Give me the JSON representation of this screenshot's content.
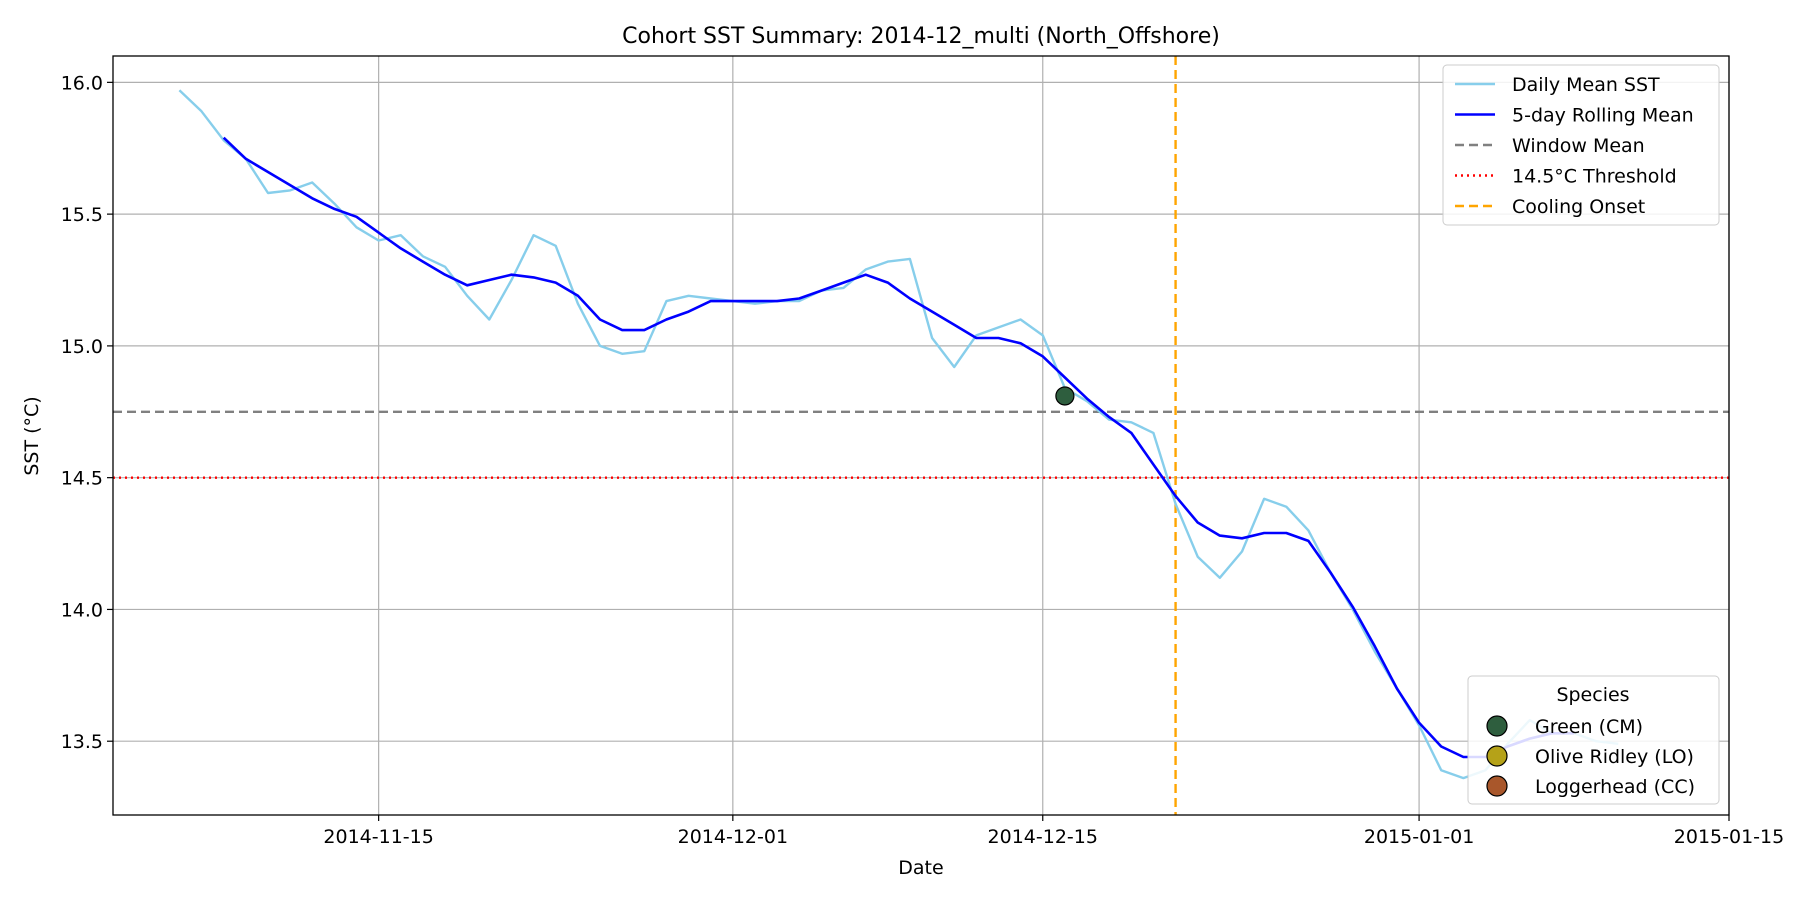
{
  "chart_data": {
    "type": "line",
    "title": "Cohort SST Summary: 2014-12_multi (North_Offshore)",
    "xlabel": "Date",
    "ylabel": "SST (°C)",
    "xlim": [
      "2014-11-03",
      "2015-01-15"
    ],
    "ylim": [
      13.22,
      16.1
    ],
    "x_ticks": [
      "2014-11-15",
      "2014-12-01",
      "2014-12-15",
      "2015-01-01",
      "2015-01-15"
    ],
    "y_ticks": [
      13.5,
      14.0,
      14.5,
      15.0,
      15.5,
      16.0
    ],
    "y_tick_labels": [
      "13.5",
      "14.0",
      "14.5",
      "15.0",
      "15.5",
      "16.0"
    ],
    "grid": true,
    "series": [
      {
        "name": "Daily Mean SST",
        "color": "#87ceeb",
        "style": "solid",
        "x": [
          "2014-11-06",
          "2014-11-07",
          "2014-11-08",
          "2014-11-09",
          "2014-11-10",
          "2014-11-11",
          "2014-11-12",
          "2014-11-13",
          "2014-11-14",
          "2014-11-15",
          "2014-11-16",
          "2014-11-17",
          "2014-11-18",
          "2014-11-19",
          "2014-11-20",
          "2014-11-21",
          "2014-11-22",
          "2014-11-23",
          "2014-11-24",
          "2014-11-25",
          "2014-11-26",
          "2014-11-27",
          "2014-11-28",
          "2014-11-29",
          "2014-11-30",
          "2014-12-01",
          "2014-12-02",
          "2014-12-03",
          "2014-12-04",
          "2014-12-05",
          "2014-12-06",
          "2014-12-07",
          "2014-12-08",
          "2014-12-09",
          "2014-12-10",
          "2014-12-11",
          "2014-12-12",
          "2014-12-13",
          "2014-12-14",
          "2014-12-15",
          "2014-12-16",
          "2014-12-17",
          "2014-12-18",
          "2014-12-19",
          "2014-12-20",
          "2014-12-21",
          "2014-12-22",
          "2014-12-23",
          "2014-12-24",
          "2014-12-25",
          "2014-12-26",
          "2014-12-27",
          "2014-12-28",
          "2014-12-29",
          "2014-12-30",
          "2014-12-31",
          "2015-01-01",
          "2015-01-02",
          "2015-01-03",
          "2015-01-04",
          "2015-01-05",
          "2015-01-06",
          "2015-01-07",
          "2015-01-08",
          "2015-01-09",
          "2015-01-10"
        ],
        "values": [
          15.97,
          15.89,
          15.78,
          15.71,
          15.58,
          15.59,
          15.62,
          15.54,
          15.45,
          15.4,
          15.42,
          15.34,
          15.3,
          15.19,
          15.1,
          15.25,
          15.42,
          15.38,
          15.16,
          15.0,
          14.97,
          14.98,
          15.17,
          15.19,
          15.18,
          15.17,
          15.16,
          15.17,
          15.17,
          15.21,
          15.22,
          15.29,
          15.32,
          15.33,
          15.03,
          14.92,
          15.04,
          15.07,
          15.1,
          15.04,
          14.84,
          14.79,
          14.72,
          14.71,
          14.67,
          14.4,
          14.2,
          14.12,
          14.22,
          14.42,
          14.39,
          14.3,
          14.14,
          14.0,
          13.84,
          13.7,
          13.56,
          13.39,
          13.36,
          13.39,
          13.49,
          13.58,
          13.53,
          13.53,
          13.5,
          13.49
        ]
      },
      {
        "name": "5-day Rolling Mean",
        "color": "#0000ff",
        "style": "solid",
        "x": [
          "2014-11-08",
          "2014-11-09",
          "2014-11-10",
          "2014-11-11",
          "2014-11-12",
          "2014-11-13",
          "2014-11-14",
          "2014-11-15",
          "2014-11-16",
          "2014-11-17",
          "2014-11-18",
          "2014-11-19",
          "2014-11-20",
          "2014-11-21",
          "2014-11-22",
          "2014-11-23",
          "2014-11-24",
          "2014-11-25",
          "2014-11-26",
          "2014-11-27",
          "2014-11-28",
          "2014-11-29",
          "2014-11-30",
          "2014-12-01",
          "2014-12-02",
          "2014-12-03",
          "2014-12-04",
          "2014-12-05",
          "2014-12-06",
          "2014-12-07",
          "2014-12-08",
          "2014-12-09",
          "2014-12-10",
          "2014-12-11",
          "2014-12-12",
          "2014-12-13",
          "2014-12-14",
          "2014-12-15",
          "2014-12-16",
          "2014-12-17",
          "2014-12-18",
          "2014-12-19",
          "2014-12-20",
          "2014-12-21",
          "2014-12-22",
          "2014-12-23",
          "2014-12-24",
          "2014-12-25",
          "2014-12-26",
          "2014-12-27",
          "2014-12-28",
          "2014-12-29",
          "2014-12-30",
          "2014-12-31",
          "2015-01-01",
          "2015-01-02",
          "2015-01-03",
          "2015-01-04",
          "2015-01-05",
          "2015-01-06",
          "2015-01-07",
          "2015-01-08"
        ],
        "values": [
          15.79,
          15.71,
          15.66,
          15.61,
          15.56,
          15.52,
          15.49,
          15.43,
          15.37,
          15.32,
          15.27,
          15.23,
          15.25,
          15.27,
          15.26,
          15.24,
          15.19,
          15.1,
          15.06,
          15.06,
          15.1,
          15.13,
          15.17,
          15.17,
          15.17,
          15.17,
          15.18,
          15.21,
          15.24,
          15.27,
          15.24,
          15.18,
          15.13,
          15.08,
          15.03,
          15.03,
          15.01,
          14.96,
          14.88,
          14.8,
          14.73,
          14.67,
          14.55,
          14.43,
          14.33,
          14.28,
          14.27,
          14.29,
          14.29,
          14.26,
          14.14,
          14.01,
          13.86,
          13.7,
          13.57,
          13.48,
          13.44,
          13.44,
          13.48,
          13.51,
          13.53,
          13.53
        ]
      }
    ],
    "reference_lines": [
      {
        "name": "Window Mean",
        "orientation": "horizontal",
        "value": 14.75,
        "color": "#808080",
        "style": "dashed"
      },
      {
        "name": "14.5°C Threshold",
        "orientation": "horizontal",
        "value": 14.5,
        "color": "#ff0000",
        "style": "dotted"
      },
      {
        "name": "Cooling Onset",
        "orientation": "vertical",
        "value": "2014-12-21",
        "color": "#ffa500",
        "style": "dashed"
      }
    ],
    "markers": [
      {
        "x": "2014-12-16",
        "y": 14.81,
        "species": "Green (CM)",
        "color": "#2e5e3e"
      }
    ],
    "legend": {
      "placement": "upper right",
      "entries": [
        "Daily Mean SST",
        "5-day Rolling Mean",
        "Window Mean",
        "14.5°C Threshold",
        "Cooling Onset"
      ]
    },
    "species_legend": {
      "placement": "lower right",
      "title": "Species",
      "entries": [
        {
          "label": "Green (CM)",
          "color": "#2e5e3e"
        },
        {
          "label": "Olive Ridley (LO)",
          "color": "#b5a218"
        },
        {
          "label": "Loggerhead (CC)",
          "color": "#a9572b"
        }
      ]
    }
  }
}
